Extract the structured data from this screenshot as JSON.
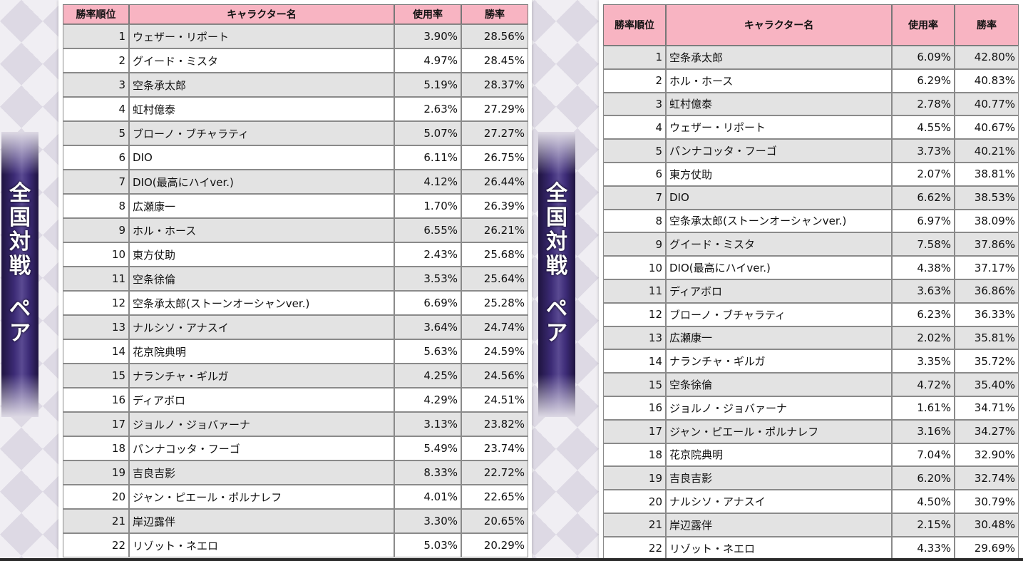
{
  "banners": {
    "left": [
      "全",
      "国",
      "対",
      "戦",
      "",
      "ペ",
      "ア"
    ],
    "right": [
      "全",
      "国",
      "対",
      "戦",
      "",
      "ペ",
      "ア"
    ]
  },
  "headers": {
    "rank": "勝率順位",
    "name": "キャラクター名",
    "usage": "使用率",
    "winrate": "勝率"
  },
  "left_table": [
    {
      "rank": "1",
      "name": "ウェザー・リポート",
      "usage": "3.90%",
      "winrate": "28.56%"
    },
    {
      "rank": "2",
      "name": "グイード・ミスタ",
      "usage": "4.97%",
      "winrate": "28.45%"
    },
    {
      "rank": "3",
      "name": "空条承太郎",
      "usage": "5.19%",
      "winrate": "28.37%"
    },
    {
      "rank": "4",
      "name": "虹村億泰",
      "usage": "2.63%",
      "winrate": "27.29%"
    },
    {
      "rank": "5",
      "name": "ブローノ・ブチャラティ",
      "usage": "5.07%",
      "winrate": "27.27%"
    },
    {
      "rank": "6",
      "name": "DIO",
      "usage": "6.11%",
      "winrate": "26.75%"
    },
    {
      "rank": "7",
      "name": "DIO(最高にハイver.)",
      "usage": "4.12%",
      "winrate": "26.44%"
    },
    {
      "rank": "8",
      "name": "広瀬康一",
      "usage": "1.70%",
      "winrate": "26.39%"
    },
    {
      "rank": "9",
      "name": "ホル・ホース",
      "usage": "6.55%",
      "winrate": "26.21%"
    },
    {
      "rank": "10",
      "name": "東方仗助",
      "usage": "2.43%",
      "winrate": "25.68%"
    },
    {
      "rank": "11",
      "name": "空条徐倫",
      "usage": "3.53%",
      "winrate": "25.64%"
    },
    {
      "rank": "12",
      "name": "空条承太郎(ストーンオーシャンver.)",
      "usage": "6.69%",
      "winrate": "25.28%"
    },
    {
      "rank": "13",
      "name": "ナルシソ・アナスイ",
      "usage": "3.64%",
      "winrate": "24.74%"
    },
    {
      "rank": "14",
      "name": "花京院典明",
      "usage": "5.63%",
      "winrate": "24.59%"
    },
    {
      "rank": "15",
      "name": "ナランチャ・ギルガ",
      "usage": "4.25%",
      "winrate": "24.56%"
    },
    {
      "rank": "16",
      "name": "ディアボロ",
      "usage": "4.29%",
      "winrate": "24.51%"
    },
    {
      "rank": "17",
      "name": "ジョルノ・ジョバァーナ",
      "usage": "3.13%",
      "winrate": "23.82%"
    },
    {
      "rank": "18",
      "name": "パンナコッタ・フーゴ",
      "usage": "5.49%",
      "winrate": "23.74%"
    },
    {
      "rank": "19",
      "name": "吉良吉影",
      "usage": "8.33%",
      "winrate": "22.72%"
    },
    {
      "rank": "20",
      "name": "ジャン・ピエール・ポルナレフ",
      "usage": "4.01%",
      "winrate": "22.65%"
    },
    {
      "rank": "21",
      "name": "岸辺露伴",
      "usage": "3.30%",
      "winrate": "20.65%"
    },
    {
      "rank": "22",
      "name": "リゾット・ネエロ",
      "usage": "5.03%",
      "winrate": "20.29%"
    }
  ],
  "right_table": [
    {
      "rank": "1",
      "name": "空条承太郎",
      "usage": "6.09%",
      "winrate": "42.80%"
    },
    {
      "rank": "2",
      "name": "ホル・ホース",
      "usage": "6.29%",
      "winrate": "40.83%"
    },
    {
      "rank": "3",
      "name": "虹村億泰",
      "usage": "2.78%",
      "winrate": "40.77%"
    },
    {
      "rank": "4",
      "name": "ウェザー・リポート",
      "usage": "4.55%",
      "winrate": "40.67%"
    },
    {
      "rank": "5",
      "name": "パンナコッタ・フーゴ",
      "usage": "3.73%",
      "winrate": "40.21%"
    },
    {
      "rank": "6",
      "name": "東方仗助",
      "usage": "2.07%",
      "winrate": "38.81%"
    },
    {
      "rank": "7",
      "name": "DIO",
      "usage": "6.62%",
      "winrate": "38.53%"
    },
    {
      "rank": "8",
      "name": "空条承太郎(ストーンオーシャンver.)",
      "usage": "6.97%",
      "winrate": "38.09%"
    },
    {
      "rank": "9",
      "name": "グイード・ミスタ",
      "usage": "7.58%",
      "winrate": "37.86%"
    },
    {
      "rank": "10",
      "name": "DIO(最高にハイver.)",
      "usage": "4.38%",
      "winrate": "37.17%"
    },
    {
      "rank": "11",
      "name": "ディアボロ",
      "usage": "3.63%",
      "winrate": "36.86%"
    },
    {
      "rank": "12",
      "name": "ブローノ・ブチャラティ",
      "usage": "6.23%",
      "winrate": "36.33%"
    },
    {
      "rank": "13",
      "name": "広瀬康一",
      "usage": "2.02%",
      "winrate": "35.81%"
    },
    {
      "rank": "14",
      "name": "ナランチャ・ギルガ",
      "usage": "3.35%",
      "winrate": "35.72%"
    },
    {
      "rank": "15",
      "name": "空条徐倫",
      "usage": "4.72%",
      "winrate": "35.40%"
    },
    {
      "rank": "16",
      "name": "ジョルノ・ジョバァーナ",
      "usage": "1.61%",
      "winrate": "34.71%"
    },
    {
      "rank": "17",
      "name": "ジャン・ピエール・ポルナレフ",
      "usage": "3.16%",
      "winrate": "34.27%"
    },
    {
      "rank": "18",
      "name": "花京院典明",
      "usage": "7.04%",
      "winrate": "32.90%"
    },
    {
      "rank": "19",
      "name": "吉良吉影",
      "usage": "6.20%",
      "winrate": "32.74%"
    },
    {
      "rank": "20",
      "name": "ナルシソ・アナスイ",
      "usage": "4.50%",
      "winrate": "30.79%"
    },
    {
      "rank": "21",
      "name": "岸辺露伴",
      "usage": "2.15%",
      "winrate": "30.48%"
    },
    {
      "rank": "22",
      "name": "リゾット・ネエロ",
      "usage": "4.33%",
      "winrate": "29.69%"
    }
  ],
  "colors": {
    "header_pink": "#f8b4c2",
    "row_gray": "#e3e3e3",
    "banner_purple": "#3c2b76"
  }
}
